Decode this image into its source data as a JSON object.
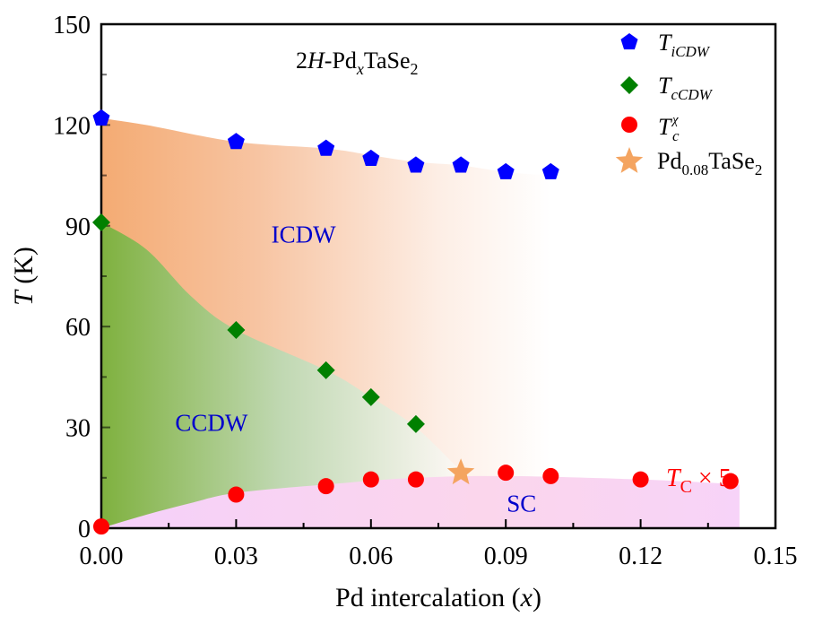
{
  "chart_data": {
    "type": "scatter",
    "title": "2H-PdxTaSe2",
    "title_parts": {
      "prefix": "2",
      "italic": "H",
      "mid": "-Pd",
      "sub_x": "x",
      "rest": "TaSe",
      "sub2": "2"
    },
    "xlabel": "Pd intercalation (x)",
    "xlabel_parts": {
      "main": "Pd intercalation (",
      "italic": "x",
      "end": ")"
    },
    "ylabel": "T (K)",
    "ylabel_parts": {
      "italic": "T",
      "rest": " (K)"
    },
    "xlim": [
      0,
      0.15
    ],
    "ylim": [
      0,
      150
    ],
    "xticks": [
      "0.00",
      "0.03",
      "0.06",
      "0.09",
      "0.12",
      "0.15"
    ],
    "xtick_values": [
      0,
      0.03,
      0.06,
      0.09,
      0.12,
      0.15
    ],
    "yticks": [
      "0",
      "30",
      "60",
      "90",
      "120",
      "150"
    ],
    "ytick_values": [
      0,
      30,
      60,
      90,
      120,
      150
    ],
    "grid": false,
    "legend_position": "top-right",
    "series": [
      {
        "name": "T_iCDW",
        "label_main": "T",
        "label_sub": "iCDW",
        "marker": "pentagon",
        "color": "#0000ff",
        "x": [
          0.0,
          0.03,
          0.05,
          0.06,
          0.07,
          0.08,
          0.09,
          0.1
        ],
        "y": [
          122,
          115,
          113,
          110,
          108,
          108,
          106,
          106
        ]
      },
      {
        "name": "T_cCDW",
        "label_main": "T",
        "label_sub": "cCDW",
        "marker": "diamond",
        "color": "#008000",
        "x": [
          0.0,
          0.03,
          0.05,
          0.06,
          0.07
        ],
        "y": [
          91,
          59,
          47,
          39,
          31
        ]
      },
      {
        "name": "T_c^chi",
        "label_main": "T",
        "label_sub": "c",
        "label_sup": "χ",
        "marker": "circle",
        "color": "#ff0000",
        "x": [
          0.0,
          0.03,
          0.05,
          0.06,
          0.07,
          0.09,
          0.1,
          0.12,
          0.14
        ],
        "y": [
          0.5,
          10,
          12.5,
          14.5,
          14.5,
          16.5,
          15.5,
          14.5,
          14
        ]
      },
      {
        "name": "Pd0.08TaSe2",
        "label_main": "Pd",
        "label_sub": "0.08",
        "label_rest": "TaSe",
        "label_sub2": "2",
        "marker": "star",
        "color": "#f4a460",
        "x": [
          0.08
        ],
        "y": [
          16.5
        ]
      }
    ],
    "regions": [
      {
        "name": "ICDW",
        "label": "ICDW",
        "label_x": 0.045,
        "label_y": 85,
        "color": "#f4a46a",
        "upper_x": [
          0,
          0.01,
          0.03,
          0.05,
          0.06,
          0.07,
          0.08,
          0.09,
          0.1
        ],
        "upper_y": [
          122,
          120,
          115,
          113,
          111,
          109,
          108,
          106,
          105
        ]
      },
      {
        "name": "CCDW",
        "label": "CCDW",
        "label_x": 0.0245,
        "label_y": 29,
        "color": "#7fb13f",
        "upper_x": [
          0,
          0.01,
          0.02,
          0.03,
          0.05,
          0.06,
          0.07,
          0.08
        ],
        "upper_y": [
          91,
          83,
          69,
          59,
          47,
          39,
          30,
          17
        ]
      },
      {
        "name": "SC",
        "label": "SC",
        "label_x": 0.0935,
        "label_y": 5,
        "color": "#f5c6f5",
        "upper_x": [
          0,
          0.01,
          0.02,
          0.03,
          0.05,
          0.07,
          0.09,
          0.12,
          0.142
        ],
        "upper_y": [
          0,
          4,
          7.5,
          10.5,
          13,
          15,
          15.5,
          14.5,
          13
        ]
      }
    ],
    "annotations": [
      {
        "text_main": "T",
        "text_sub": "C",
        "text_rest": " × 5",
        "x": 0.1365,
        "y": 23,
        "color": "#ff0000"
      }
    ],
    "label_color": "#0000cc"
  }
}
